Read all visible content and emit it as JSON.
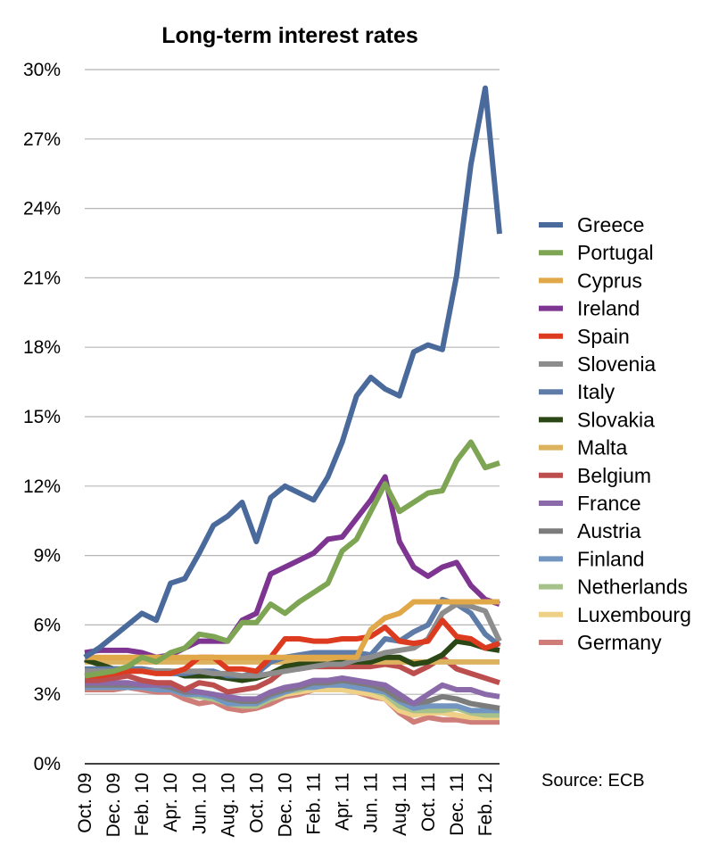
{
  "chart_data": {
    "type": "line",
    "title": "Long-term interest rates",
    "source": "Source: ECB",
    "ylim": [
      0,
      30
    ],
    "y_ticks": [
      "0%",
      "3%",
      "6%",
      "9%",
      "12%",
      "15%",
      "18%",
      "21%",
      "24%",
      "27%",
      "30%"
    ],
    "y_tick_values": [
      0,
      3,
      6,
      9,
      12,
      15,
      18,
      21,
      24,
      27,
      30
    ],
    "x_tick_labels": [
      "Oct. 09",
      "Dec. 09",
      "Feb. 10",
      "Apr. 10",
      "Jun. 10",
      "Aug. 10",
      "Oct. 10",
      "Dec. 10",
      "Feb. 11",
      "Apr. 11",
      "Jun. 11",
      "Aug. 11",
      "Oct. 11",
      "Dec. 11",
      "Feb. 12"
    ],
    "x": [
      "Oct. 09",
      "Nov. 09",
      "Dec. 09",
      "Jan. 10",
      "Feb. 10",
      "Mar. 10",
      "Apr. 10",
      "May 10",
      "Jun. 10",
      "Jul. 10",
      "Aug. 10",
      "Sep. 10",
      "Oct. 10",
      "Nov. 10",
      "Dec. 10",
      "Jan. 11",
      "Feb. 11",
      "Mar. 11",
      "Apr. 11",
      "May 11",
      "Jun. 11",
      "Jul. 11",
      "Aug. 11",
      "Sep. 11",
      "Oct. 11",
      "Nov. 11",
      "Dec. 11",
      "Jan. 12",
      "Feb. 12",
      "Mar. 12"
    ],
    "grid": true,
    "legend_position": "right",
    "series": [
      {
        "name": "Greece",
        "color": "#4a6a9c",
        "values": [
          4.6,
          5.0,
          5.5,
          6.0,
          6.5,
          6.2,
          7.8,
          8.0,
          9.1,
          10.3,
          10.7,
          11.3,
          9.6,
          11.5,
          12.0,
          11.7,
          11.4,
          12.4,
          13.9,
          15.9,
          16.7,
          16.2,
          15.9,
          17.8,
          18.1,
          17.9,
          21.1,
          25.9,
          29.2,
          22.9
        ]
      },
      {
        "name": "Portugal",
        "color": "#7ea553",
        "values": [
          3.8,
          3.9,
          4.0,
          4.2,
          4.6,
          4.4,
          4.8,
          5.0,
          5.6,
          5.5,
          5.3,
          6.1,
          6.1,
          6.9,
          6.5,
          7.0,
          7.4,
          7.8,
          9.2,
          9.7,
          10.9,
          12.1,
          10.9,
          11.3,
          11.7,
          11.8,
          13.1,
          13.9,
          12.8,
          13.0
        ]
      },
      {
        "name": "Cyprus",
        "color": "#e0a848",
        "values": [
          4.6,
          4.6,
          4.6,
          4.6,
          4.6,
          4.6,
          4.6,
          4.6,
          4.6,
          4.6,
          4.6,
          4.6,
          4.6,
          4.6,
          4.6,
          4.6,
          4.6,
          4.6,
          4.6,
          4.6,
          5.8,
          6.3,
          6.5,
          7.0,
          7.0,
          7.0,
          7.0,
          7.0,
          7.0,
          7.0
        ]
      },
      {
        "name": "Ireland",
        "color": "#7d3591",
        "values": [
          4.8,
          4.9,
          4.9,
          4.9,
          4.8,
          4.6,
          4.7,
          5.0,
          5.3,
          5.3,
          5.3,
          6.2,
          6.5,
          8.2,
          8.5,
          8.8,
          9.1,
          9.7,
          9.8,
          10.6,
          11.4,
          12.4,
          9.6,
          8.5,
          8.1,
          8.5,
          8.7,
          7.7,
          7.1,
          6.9
        ]
      },
      {
        "name": "Spain",
        "color": "#dd3b1f",
        "values": [
          3.8,
          3.8,
          3.9,
          4.0,
          4.0,
          3.9,
          3.9,
          4.1,
          4.6,
          4.6,
          4.1,
          4.1,
          4.0,
          4.6,
          5.4,
          5.4,
          5.3,
          5.3,
          5.4,
          5.4,
          5.5,
          5.9,
          5.3,
          5.2,
          5.3,
          6.2,
          5.5,
          5.4,
          5.0,
          5.2
        ]
      },
      {
        "name": "Slovenia",
        "color": "#8d8d8d",
        "values": [
          4.0,
          4.0,
          4.0,
          4.0,
          4.0,
          4.0,
          4.0,
          4.0,
          4.0,
          3.9,
          3.9,
          3.8,
          3.8,
          3.9,
          4.0,
          4.1,
          4.2,
          4.3,
          4.3,
          4.5,
          4.6,
          4.8,
          4.9,
          5.0,
          5.4,
          6.5,
          6.9,
          6.8,
          6.6,
          5.3
        ]
      },
      {
        "name": "Italy",
        "color": "#5f7ba8",
        "values": [
          4.1,
          4.1,
          4.1,
          4.1,
          4.1,
          4.0,
          3.9,
          3.9,
          4.0,
          4.0,
          3.8,
          3.8,
          3.9,
          4.4,
          4.6,
          4.7,
          4.8,
          4.8,
          4.8,
          4.8,
          4.7,
          5.4,
          5.3,
          5.7,
          6.0,
          7.1,
          6.9,
          6.5,
          5.6,
          5.1
        ]
      },
      {
        "name": "Slovakia",
        "color": "#2b4715",
        "values": [
          4.5,
          4.3,
          4.1,
          4.1,
          4.1,
          4.0,
          4.0,
          3.8,
          3.8,
          3.8,
          3.7,
          3.6,
          3.7,
          3.9,
          4.2,
          4.3,
          4.3,
          4.3,
          4.4,
          4.4,
          4.4,
          4.6,
          4.6,
          4.3,
          4.4,
          4.7,
          5.3,
          5.2,
          5.0,
          4.9
        ]
      },
      {
        "name": "Malta",
        "color": "#dcb25e",
        "values": [
          4.4,
          4.4,
          4.4,
          4.4,
          4.4,
          4.4,
          4.4,
          4.4,
          4.4,
          4.4,
          4.4,
          4.4,
          4.4,
          4.4,
          4.4,
          4.4,
          4.4,
          4.4,
          4.4,
          4.4,
          4.4,
          4.4,
          4.4,
          4.4,
          4.4,
          4.4,
          4.4,
          4.4,
          4.4,
          4.4
        ]
      },
      {
        "name": "Belgium",
        "color": "#bc4e4e",
        "values": [
          3.6,
          3.6,
          3.7,
          3.8,
          3.6,
          3.5,
          3.5,
          3.2,
          3.5,
          3.4,
          3.1,
          3.2,
          3.3,
          3.6,
          4.1,
          4.1,
          4.2,
          4.2,
          4.2,
          4.2,
          4.2,
          4.3,
          4.2,
          3.9,
          4.2,
          4.6,
          4.1,
          3.9,
          3.7,
          3.5
        ]
      },
      {
        "name": "France",
        "color": "#8b6aaa",
        "values": [
          3.5,
          3.5,
          3.5,
          3.5,
          3.4,
          3.4,
          3.4,
          3.2,
          3.1,
          3.0,
          2.9,
          2.8,
          2.8,
          3.1,
          3.3,
          3.4,
          3.6,
          3.6,
          3.7,
          3.6,
          3.5,
          3.4,
          3.0,
          2.6,
          3.0,
          3.4,
          3.2,
          3.2,
          3.0,
          2.9
        ]
      },
      {
        "name": "Austria",
        "color": "#7c7c7c",
        "values": [
          3.4,
          3.4,
          3.4,
          3.4,
          3.4,
          3.4,
          3.3,
          3.1,
          3.1,
          3.0,
          2.8,
          2.7,
          2.7,
          3.0,
          3.2,
          3.3,
          3.5,
          3.5,
          3.6,
          3.5,
          3.4,
          3.2,
          2.8,
          2.6,
          2.7,
          2.9,
          2.8,
          2.6,
          2.5,
          2.4
        ]
      },
      {
        "name": "Finland",
        "color": "#7395c1",
        "values": [
          3.3,
          3.3,
          3.3,
          3.3,
          3.3,
          3.2,
          3.2,
          3.0,
          3.0,
          2.9,
          2.6,
          2.6,
          2.6,
          2.9,
          3.1,
          3.3,
          3.3,
          3.4,
          3.4,
          3.3,
          3.2,
          3.1,
          2.7,
          2.4,
          2.5,
          2.5,
          2.5,
          2.3,
          2.3,
          2.3
        ]
      },
      {
        "name": "Netherlands",
        "color": "#a6c28a",
        "values": [
          3.3,
          3.3,
          3.3,
          3.3,
          3.3,
          3.2,
          3.2,
          3.0,
          2.9,
          2.8,
          2.6,
          2.5,
          2.5,
          2.8,
          3.1,
          3.2,
          3.4,
          3.4,
          3.4,
          3.3,
          3.2,
          3.0,
          2.5,
          2.3,
          2.3,
          2.3,
          2.4,
          2.2,
          2.1,
          2.1
        ]
      },
      {
        "name": "Luxembourg",
        "color": "#efd087",
        "values": [
          3.3,
          3.3,
          3.3,
          3.3,
          3.3,
          3.2,
          3.2,
          3.0,
          2.9,
          2.8,
          2.6,
          2.5,
          2.5,
          2.8,
          3.0,
          3.1,
          3.2,
          3.2,
          3.2,
          3.1,
          3.0,
          2.8,
          2.3,
          2.1,
          2.2,
          2.2,
          2.1,
          2.0,
          2.0,
          2.0
        ]
      },
      {
        "name": "Germany",
        "color": "#cf7d78",
        "values": [
          3.2,
          3.2,
          3.2,
          3.3,
          3.2,
          3.1,
          3.1,
          2.8,
          2.6,
          2.7,
          2.4,
          2.3,
          2.4,
          2.6,
          2.9,
          3.0,
          3.2,
          3.2,
          3.3,
          3.1,
          2.9,
          2.8,
          2.2,
          1.8,
          2.0,
          1.9,
          1.9,
          1.8,
          1.8,
          1.8
        ]
      }
    ]
  }
}
